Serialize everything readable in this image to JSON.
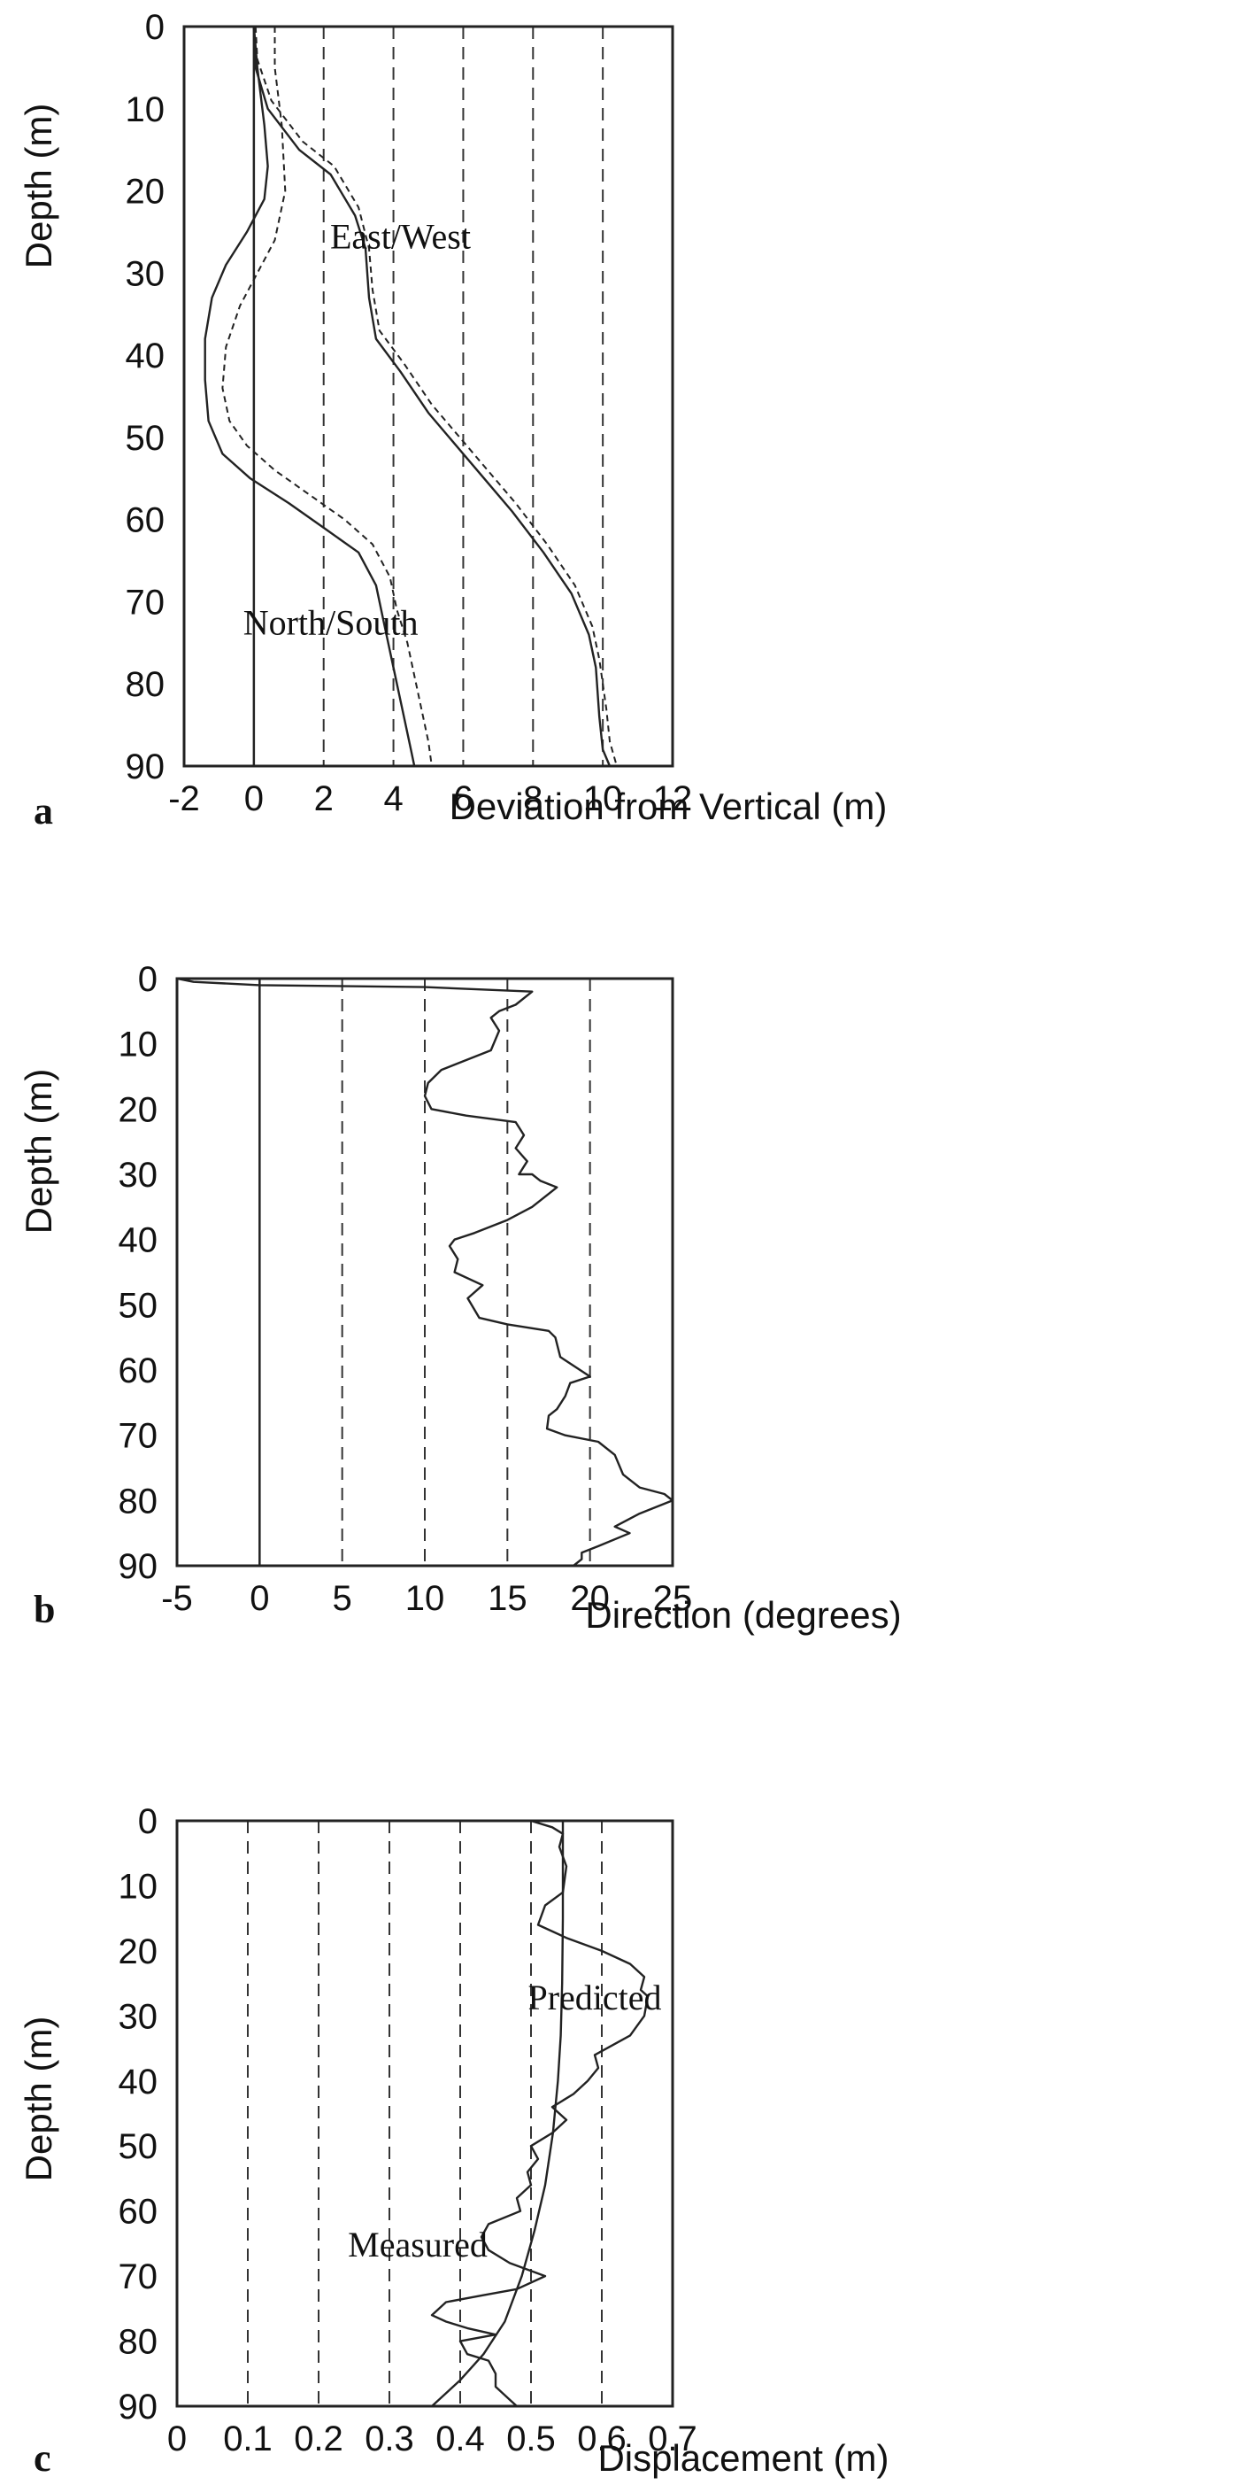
{
  "chart_data": [
    {
      "type": "line",
      "panel_label": "a",
      "xlabel": "Deviation from Vertical (m)",
      "ylabel": "Depth (m)",
      "xlim": [
        -2,
        12
      ],
      "ylim": [
        0,
        90
      ],
      "y_inverted": true,
      "x_ticks": [
        -2,
        0,
        2,
        4,
        6,
        8,
        10,
        12
      ],
      "y_ticks": [
        0,
        10,
        20,
        30,
        40,
        50,
        60,
        70,
        80,
        90
      ],
      "vertical_dashed_gridlines_at": [
        2,
        4,
        6,
        8,
        10
      ],
      "solid_reference_line_at": 0,
      "annotations": [
        {
          "text": "East/West",
          "x": 4.2,
          "y": 27
        },
        {
          "text": "North/South",
          "x": 2.2,
          "y": 74
        }
      ],
      "series": [
        {
          "style": "solid",
          "points": [
            [
              0,
              0
            ],
            [
              0.05,
              5
            ],
            [
              0.4,
              10
            ],
            [
              1.3,
              15
            ],
            [
              2.2,
              18
            ],
            [
              2.9,
              23
            ],
            [
              3.2,
              27
            ],
            [
              3.3,
              33
            ],
            [
              3.5,
              38
            ],
            [
              4.2,
              42
            ],
            [
              5,
              47
            ],
            [
              5.8,
              51
            ],
            [
              6.6,
              55
            ],
            [
              7.4,
              59
            ],
            [
              8.3,
              64
            ],
            [
              9.1,
              69
            ],
            [
              9.6,
              74
            ],
            [
              9.8,
              78
            ],
            [
              9.9,
              84
            ],
            [
              10,
              88
            ],
            [
              10.2,
              90
            ]
          ]
        },
        {
          "style": "dashed",
          "points": [
            [
              0.05,
              0
            ],
            [
              0.1,
              4
            ],
            [
              0.5,
              9
            ],
            [
              1.4,
              14
            ],
            [
              2.3,
              17
            ],
            [
              3.0,
              22
            ],
            [
              3.3,
              27
            ],
            [
              3.4,
              32
            ],
            [
              3.6,
              37
            ],
            [
              4.3,
              41
            ],
            [
              5.1,
              46
            ],
            [
              5.9,
              50
            ],
            [
              6.7,
              54
            ],
            [
              7.5,
              58
            ],
            [
              8.4,
              63
            ],
            [
              9.2,
              68
            ],
            [
              9.7,
              73
            ],
            [
              9.9,
              77
            ],
            [
              10.1,
              83
            ],
            [
              10.2,
              87
            ],
            [
              10.4,
              90
            ]
          ]
        },
        {
          "style": "solid",
          "points": [
            [
              0,
              0
            ],
            [
              0.1,
              5
            ],
            [
              0.3,
              12
            ],
            [
              0.4,
              17
            ],
            [
              0.3,
              21
            ],
            [
              -0.2,
              25
            ],
            [
              -0.8,
              29
            ],
            [
              -1.2,
              33
            ],
            [
              -1.4,
              38
            ],
            [
              -1.4,
              43
            ],
            [
              -1.3,
              48
            ],
            [
              -0.9,
              52
            ],
            [
              -0.1,
              55
            ],
            [
              1,
              58
            ],
            [
              2,
              61
            ],
            [
              3,
              64
            ],
            [
              3.5,
              68
            ],
            [
              3.7,
              72
            ],
            [
              3.9,
              76
            ],
            [
              4.1,
              80
            ],
            [
              4.3,
              84
            ],
            [
              4.5,
              88
            ],
            [
              4.6,
              90
            ]
          ]
        },
        {
          "style": "dashed",
          "points": [
            [
              0.6,
              0
            ],
            [
              0.6,
              5
            ],
            [
              0.8,
              12
            ],
            [
              0.9,
              20
            ],
            [
              0.6,
              26
            ],
            [
              0.1,
              30
            ],
            [
              -0.4,
              34
            ],
            [
              -0.8,
              39
            ],
            [
              -0.9,
              44
            ],
            [
              -0.7,
              48
            ],
            [
              -0.2,
              51
            ],
            [
              0.6,
              54
            ],
            [
              1.6,
              57
            ],
            [
              2.6,
              60
            ],
            [
              3.4,
              63
            ],
            [
              3.9,
              67
            ],
            [
              4.1,
              71
            ],
            [
              4.4,
              75
            ],
            [
              4.6,
              79
            ],
            [
              4.8,
              83
            ],
            [
              5.0,
              87
            ],
            [
              5.1,
              90
            ]
          ]
        }
      ]
    },
    {
      "type": "line",
      "panel_label": "b",
      "xlabel": "Direction (degrees)",
      "ylabel": "Depth (m)",
      "xlim": [
        -5,
        25
      ],
      "ylim": [
        0,
        90
      ],
      "y_inverted": true,
      "x_ticks": [
        -5,
        0,
        5,
        10,
        15,
        20,
        25
      ],
      "y_ticks": [
        0,
        10,
        20,
        30,
        40,
        50,
        60,
        70,
        80,
        90
      ],
      "vertical_dashed_gridlines_at": [
        5,
        10,
        15,
        20
      ],
      "solid_reference_line_at": 0,
      "annotations": [],
      "series": [
        {
          "style": "solid",
          "points": [
            [
              -5,
              0
            ],
            [
              -4,
              0.5
            ],
            [
              0,
              1
            ],
            [
              10,
              1.3
            ],
            [
              16.5,
              2
            ],
            [
              15.5,
              4
            ],
            [
              14.5,
              5
            ],
            [
              14,
              6
            ],
            [
              14.5,
              8
            ],
            [
              14,
              11
            ],
            [
              13,
              12
            ],
            [
              12,
              13
            ],
            [
              11,
              14
            ],
            [
              10.2,
              16
            ],
            [
              10,
              18
            ],
            [
              10.4,
              20
            ],
            [
              12.5,
              21
            ],
            [
              15.5,
              22
            ],
            [
              16,
              24
            ],
            [
              15.5,
              26
            ],
            [
              16.2,
              28
            ],
            [
              15.7,
              30
            ],
            [
              16.5,
              30
            ],
            [
              17,
              31
            ],
            [
              18,
              32
            ],
            [
              16.5,
              35
            ],
            [
              15,
              37
            ],
            [
              13,
              39
            ],
            [
              11.8,
              40
            ],
            [
              11.5,
              41
            ],
            [
              12,
              43
            ],
            [
              11.8,
              45
            ],
            [
              13.5,
              47
            ],
            [
              12.6,
              49
            ],
            [
              13.3,
              52
            ],
            [
              15,
              53
            ],
            [
              17.5,
              54
            ],
            [
              17.9,
              55
            ],
            [
              18.2,
              58
            ],
            [
              20,
              61
            ],
            [
              18.8,
              62
            ],
            [
              18.5,
              64
            ],
            [
              18,
              66
            ],
            [
              17.5,
              67
            ],
            [
              17.4,
              69
            ],
            [
              18.5,
              70
            ],
            [
              20.5,
              71
            ],
            [
              21.5,
              73
            ],
            [
              22,
              76
            ],
            [
              23,
              78
            ],
            [
              24.5,
              79
            ],
            [
              25,
              80
            ],
            [
              23,
              82
            ],
            [
              21.5,
              84
            ],
            [
              22.4,
              85
            ],
            [
              20.5,
              87
            ],
            [
              19.5,
              88
            ],
            [
              19.5,
              89
            ],
            [
              19,
              90
            ]
          ]
        }
      ]
    },
    {
      "type": "line",
      "panel_label": "c",
      "xlabel": "Displacement (m)",
      "ylabel": "Depth (m)",
      "xlim": [
        0,
        0.7
      ],
      "ylim": [
        0,
        90
      ],
      "y_inverted": true,
      "x_ticks": [
        0,
        0.1,
        0.2,
        0.3,
        0.4,
        0.5,
        0.6,
        0.7
      ],
      "y_ticks": [
        0,
        10,
        20,
        30,
        40,
        50,
        60,
        70,
        80,
        90
      ],
      "vertical_dashed_gridlines_at": [
        0.1,
        0.2,
        0.3,
        0.4,
        0.5,
        0.6
      ],
      "annotations": [
        {
          "text": "Predicted",
          "x": 0.59,
          "y": 29
        },
        {
          "text": "Measured",
          "x": 0.34,
          "y": 67
        }
      ],
      "series": [
        {
          "name": "Predicted",
          "style": "solid",
          "points": [
            [
              0.545,
              0
            ],
            [
              0.545,
              15
            ],
            [
              0.544,
              25
            ],
            [
              0.542,
              33
            ],
            [
              0.538,
              40
            ],
            [
              0.531,
              48
            ],
            [
              0.52,
              56
            ],
            [
              0.505,
              63
            ],
            [
              0.487,
              70
            ],
            [
              0.463,
              77
            ],
            [
              0.433,
              82
            ],
            [
              0.4,
              86
            ],
            [
              0.36,
              90
            ]
          ]
        },
        {
          "name": "Measured",
          "style": "solid",
          "points": [
            [
              0.5,
              0
            ],
            [
              0.53,
              1
            ],
            [
              0.545,
              2
            ],
            [
              0.54,
              4
            ],
            [
              0.55,
              7
            ],
            [
              0.545,
              11
            ],
            [
              0.52,
              13
            ],
            [
              0.51,
              16
            ],
            [
              0.55,
              18
            ],
            [
              0.6,
              20
            ],
            [
              0.64,
              22
            ],
            [
              0.66,
              24
            ],
            [
              0.655,
              26
            ],
            [
              0.665,
              27
            ],
            [
              0.66,
              30
            ],
            [
              0.64,
              33
            ],
            [
              0.59,
              36
            ],
            [
              0.595,
              38
            ],
            [
              0.58,
              40
            ],
            [
              0.56,
              42
            ],
            [
              0.53,
              44
            ],
            [
              0.55,
              46
            ],
            [
              0.53,
              48
            ],
            [
              0.5,
              50
            ],
            [
              0.51,
              52
            ],
            [
              0.495,
              54
            ],
            [
              0.5,
              56
            ],
            [
              0.48,
              58
            ],
            [
              0.485,
              60
            ],
            [
              0.44,
              62
            ],
            [
              0.43,
              64
            ],
            [
              0.44,
              66
            ],
            [
              0.47,
              68
            ],
            [
              0.52,
              70
            ],
            [
              0.48,
              72
            ],
            [
              0.43,
              73
            ],
            [
              0.38,
              74
            ],
            [
              0.36,
              76
            ],
            [
              0.38,
              77
            ],
            [
              0.41,
              78
            ],
            [
              0.45,
              79
            ],
            [
              0.4,
              80
            ],
            [
              0.41,
              82
            ],
            [
              0.44,
              83
            ],
            [
              0.45,
              85
            ],
            [
              0.45,
              87
            ],
            [
              0.47,
              89
            ],
            [
              0.48,
              90
            ]
          ]
        }
      ]
    }
  ]
}
